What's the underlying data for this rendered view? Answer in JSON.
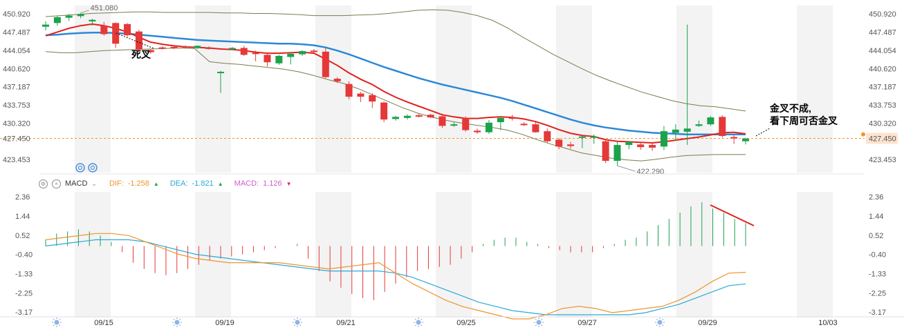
{
  "chart_data": [
    {
      "type": "candlestick",
      "y_ticks": [
        "450.920",
        "447.487",
        "444.054",
        "440.620",
        "437.187",
        "433.753",
        "430.320",
        "427.450",
        "423.453"
      ],
      "ylim": [
        421.0,
        452.5
      ],
      "current_price": "427.450",
      "high_label": "451.080",
      "low_label": "422.290",
      "x_ticks": [
        "09/15",
        "09/19",
        "09/21",
        "09/25",
        "09/27",
        "09/29",
        "10/03"
      ],
      "candles": [
        [
          448.5,
          449.5,
          447.8,
          448.9
        ],
        [
          449.2,
          450.6,
          448.7,
          450.3
        ],
        [
          450.2,
          450.9,
          449.6,
          450.6
        ],
        [
          450.5,
          451.08,
          450.1,
          450.9
        ],
        [
          449.5,
          450.0,
          448.7,
          449.8
        ],
        [
          448.7,
          449.4,
          446.8,
          447.1
        ],
        [
          449.2,
          449.3,
          444.5,
          445.3
        ],
        [
          449.0,
          449.2,
          446.6,
          446.9
        ],
        [
          447.6,
          447.9,
          443.7,
          444.2
        ],
        [
          444.1,
          444.3,
          443.4,
          443.7
        ],
        [
          444.6,
          444.8,
          444.2,
          444.5
        ],
        [
          444.7,
          444.9,
          444.3,
          444.5
        ],
        [
          444.8,
          445.0,
          444.4,
          444.6
        ],
        [
          444.5,
          445.0,
          444.3,
          444.9
        ],
        [
          444.6,
          444.8,
          444.2,
          444.3
        ],
        [
          440.0,
          440.2,
          436.0,
          440.0
        ],
        [
          444.4,
          444.7,
          444.1,
          444.5
        ],
        [
          444.5,
          444.9,
          443.0,
          443.2
        ],
        [
          443.6,
          444.0,
          442.0,
          443.4
        ],
        [
          443.2,
          443.6,
          441.0,
          441.8
        ],
        [
          441.6,
          443.2,
          441.3,
          443.0
        ],
        [
          442.8,
          443.6,
          441.4,
          443.4
        ],
        [
          443.3,
          444.1,
          443.0,
          443.9
        ],
        [
          444.0,
          444.3,
          443.6,
          443.9
        ],
        [
          443.8,
          444.5,
          438.8,
          439.0
        ],
        [
          438.7,
          439.0,
          437.9,
          438.2
        ],
        [
          437.7,
          438.2,
          434.8,
          435.3
        ],
        [
          435.9,
          436.2,
          434.3,
          435.3
        ],
        [
          435.6,
          436.0,
          433.2,
          434.4
        ],
        [
          434.2,
          434.4,
          430.5,
          431.0
        ],
        [
          431.1,
          431.7,
          430.8,
          431.5
        ],
        [
          431.3,
          432.0,
          431.0,
          431.7
        ],
        [
          431.8,
          432.2,
          431.4,
          431.6
        ],
        [
          431.9,
          432.1,
          431.3,
          431.4
        ],
        [
          431.6,
          432.1,
          429.4,
          429.8
        ],
        [
          429.9,
          430.5,
          429.6,
          430.1
        ],
        [
          431.3,
          431.6,
          428.7,
          429.0
        ],
        [
          428.9,
          429.3,
          428.3,
          428.6
        ],
        [
          428.6,
          430.9,
          428.3,
          430.4
        ],
        [
          430.5,
          431.5,
          429.0,
          431.3
        ],
        [
          431.4,
          431.9,
          430.8,
          431.2
        ],
        [
          430.2,
          430.5,
          429.8,
          430.0
        ],
        [
          430.1,
          430.5,
          428.5,
          428.6
        ],
        [
          428.8,
          429.3,
          426.6,
          426.9
        ],
        [
          427.2,
          427.5,
          425.4,
          425.9
        ],
        [
          426.3,
          426.8,
          425.5,
          426.0
        ],
        [
          427.6,
          428.0,
          425.6,
          427.8
        ],
        [
          427.6,
          428.2,
          426.4,
          427.8
        ],
        [
          426.9,
          427.3,
          422.8,
          423.2
        ],
        [
          423.2,
          426.9,
          422.29,
          426.2
        ],
        [
          426.2,
          426.9,
          425.4,
          426.8
        ],
        [
          426.3,
          426.7,
          425.3,
          425.8
        ],
        [
          426.2,
          426.6,
          425.1,
          425.7
        ],
        [
          425.9,
          429.8,
          425.2,
          428.8
        ],
        [
          428.5,
          430.1,
          427.0,
          429.1
        ],
        [
          428.7,
          448.9,
          426.2,
          429.3
        ],
        [
          429.8,
          430.8,
          429.6,
          430.1
        ],
        [
          430.1,
          431.7,
          429.8,
          431.4
        ],
        [
          431.5,
          431.8,
          427.6,
          427.9
        ],
        [
          427.7,
          428.1,
          426.4,
          427.5
        ],
        [
          426.9,
          427.6,
          426.3,
          427.4
        ]
      ],
      "ma_red": [
        446.8,
        447.5,
        448.2,
        448.7,
        449.0,
        448.7,
        448.2,
        447.5,
        446.5,
        445.6,
        445.2,
        444.9,
        444.7,
        444.6,
        444.5,
        444.3,
        444.2,
        444.0,
        443.7,
        443.5,
        443.5,
        443.6,
        443.7,
        443.5,
        442.4,
        441.2,
        439.8,
        438.6,
        437.6,
        436.3,
        435.2,
        434.3,
        433.5,
        432.7,
        431.9,
        431.5,
        431.2,
        431.2,
        431.4,
        431.5,
        431.4,
        431.1,
        430.6,
        429.9,
        429.1,
        428.4,
        428.0,
        427.8,
        427.2,
        426.9,
        426.8,
        426.7,
        426.6,
        426.8,
        427.1,
        427.4,
        427.7,
        428.1,
        428.5,
        428.6,
        428.3
      ],
      "ma_blue": [
        446.9,
        447.0,
        447.2,
        447.3,
        447.4,
        447.4,
        447.3,
        447.2,
        447.0,
        446.8,
        446.6,
        446.4,
        446.2,
        446.0,
        445.9,
        445.8,
        445.7,
        445.6,
        445.5,
        445.4,
        445.3,
        445.3,
        445.2,
        445.0,
        444.6,
        444.0,
        443.3,
        442.5,
        441.7,
        440.9,
        440.2,
        439.5,
        438.8,
        438.2,
        437.6,
        437.1,
        436.6,
        436.1,
        435.6,
        435.1,
        434.5,
        433.8,
        433.1,
        432.4,
        431.7,
        431.0,
        430.4,
        429.9,
        429.5,
        429.2,
        428.9,
        428.7,
        428.5,
        428.4,
        428.3,
        428.2,
        428.2,
        428.2,
        428.2,
        428.2,
        428.2
      ],
      "boll_upper": [
        450.4,
        450.6,
        450.8,
        451.0,
        451.1,
        451.2,
        451.3,
        451.3,
        451.2,
        451.2,
        451.2,
        451.2,
        451.1,
        451.1,
        451.0,
        451.0,
        450.9,
        450.8,
        450.6,
        450.6,
        450.6,
        450.7,
        450.8,
        451.0,
        451.3,
        451.6,
        451.7,
        451.6,
        451.2,
        450.6,
        449.7,
        448.3,
        446.6,
        445.0,
        443.4,
        442.0,
        440.6,
        439.3,
        438.2,
        437.2,
        436.2,
        435.4,
        434.6,
        434.0,
        433.6,
        433.4,
        433.0,
        432.6
      ],
      "boll_lower": [
        443.8,
        443.6,
        443.6,
        443.8,
        444.0,
        444.1,
        444.2,
        444.3,
        444.4,
        444.5,
        444.4,
        441.9,
        441.6,
        441.4,
        441.1,
        440.8,
        440.5,
        440.0,
        439.3,
        438.5,
        437.8,
        436.8,
        435.6,
        434.4,
        433.2,
        432.2,
        431.4,
        430.8,
        430.3,
        429.9,
        429.5,
        429.0,
        428.2,
        427.2,
        426.3,
        425.5,
        424.7,
        424.2,
        423.7,
        423.4,
        423.2,
        423.5,
        423.9,
        424.2,
        424.3,
        424.4,
        424.4,
        424.4
      ]
    },
    {
      "type": "macd",
      "title": "MACD",
      "dif_label": "DIF:",
      "dif_value": "-1.258",
      "dea_label": "DEA:",
      "dea_value": "-1.821",
      "macd_label": "MACD:",
      "macd_value": "1.126",
      "y_ticks": [
        "2.36",
        "1.44",
        "0.52",
        "-0.40",
        "-1.33",
        "-2.25",
        "-3.17"
      ],
      "ylim": [
        -3.3,
        2.6
      ],
      "hist": [
        0.3,
        0.6,
        0.7,
        0.8,
        0.7,
        0.5,
        0.2,
        -0.3,
        -0.8,
        -1.1,
        -1.3,
        -1.4,
        -1.3,
        -1.1,
        -0.9,
        -0.7,
        -0.6,
        -0.5,
        -0.4,
        -0.3,
        -0.2,
        -0.1,
        0.0,
        0.1,
        -0.6,
        -1.2,
        -1.7,
        -2.0,
        -2.3,
        -2.5,
        -2.6,
        -2.2,
        -1.8,
        -1.5,
        -1.2,
        -1.1,
        -1.0,
        -0.9,
        -0.6,
        -0.3,
        0.1,
        0.3,
        0.4,
        0.4,
        0.2,
        0.1,
        -0.1,
        -0.2,
        -0.3,
        -0.3,
        -0.3,
        -0.1,
        0.1,
        0.3,
        0.4,
        0.7,
        1.0,
        1.3,
        1.6,
        1.9,
        2.1,
        1.8,
        1.6,
        1.3,
        1.1
      ],
      "dif": [
        0.3,
        0.4,
        0.5,
        0.6,
        0.6,
        0.5,
        0.2,
        -0.1,
        -0.4,
        -0.6,
        -0.7,
        -0.8,
        -0.8,
        -0.8,
        -0.8,
        -0.9,
        -1.0,
        -1.1,
        -1.0,
        -0.9,
        -0.8,
        -1.3,
        -1.8,
        -2.2,
        -2.6,
        -2.9,
        -3.1,
        -3.3,
        -3.5,
        -3.5,
        -3.3,
        -3.0,
        -2.9,
        -3.0,
        -3.2,
        -3.1,
        -3.0,
        -2.9,
        -2.6,
        -2.2,
        -1.7,
        -1.3,
        -1.26
      ],
      "dea": [
        0.0,
        0.1,
        0.2,
        0.3,
        0.3,
        0.3,
        0.2,
        0.0,
        -0.2,
        -0.4,
        -0.5,
        -0.6,
        -0.7,
        -0.8,
        -0.9,
        -1.0,
        -1.1,
        -1.2,
        -1.2,
        -1.2,
        -1.2,
        -1.3,
        -1.5,
        -1.8,
        -2.1,
        -2.4,
        -2.7,
        -2.9,
        -3.1,
        -3.2,
        -3.3,
        -3.3,
        -3.3,
        -3.3,
        -3.3,
        -3.3,
        -3.2,
        -3.0,
        -2.8,
        -2.5,
        -2.2,
        -1.9,
        -1.82
      ]
    }
  ],
  "annotations": {
    "death_cross": "死叉",
    "note_line1": "金叉不成,",
    "note_line2": "看下周可否金叉"
  },
  "colors": {
    "up": "#1aa34a",
    "down": "#e53838",
    "ma_red": "#e0201c",
    "ma_blue": "#2b88d8",
    "boll": "#7d7a4a",
    "dif": "#f0932b",
    "dea": "#2aa8d8"
  }
}
